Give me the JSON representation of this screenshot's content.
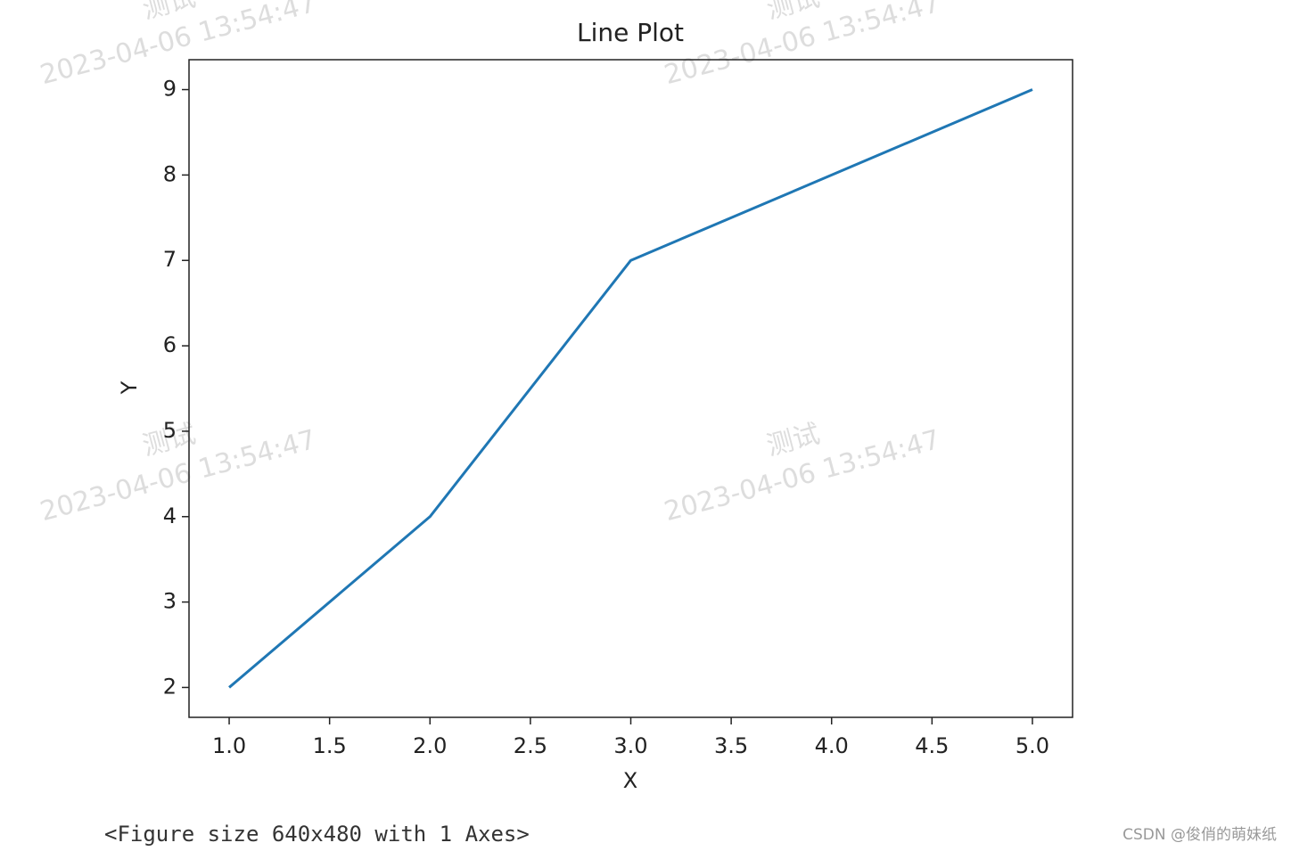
{
  "chart_data": {
    "type": "line",
    "title": "Line Plot",
    "xlabel": "X",
    "ylabel": "Y",
    "x": [
      1,
      2,
      3,
      4,
      5
    ],
    "values": [
      2,
      4,
      7,
      8,
      9
    ],
    "color": "#1f77b4",
    "xlim": [
      0.8,
      5.2
    ],
    "xticks": [
      {
        "value": 1,
        "label": "1.0"
      },
      1.5,
      {
        "value": 2,
        "label": "2.0"
      },
      2.5,
      {
        "value": 3,
        "label": "3.0"
      },
      3.5,
      {
        "value": 4,
        "label": "4.0"
      },
      4.5,
      {
        "value": 5,
        "label": "5.0"
      }
    ],
    "ylim": [
      1.65,
      9.35
    ],
    "yticks": [
      2,
      3,
      4,
      5,
      6,
      7,
      8,
      9
    ],
    "grid": false
  },
  "output_text": "<Figure size 640x480 with 1 Axes>",
  "watermark": {
    "text": "测试",
    "timestamp": "2023-04-06 13:54:47"
  },
  "footer": "CSDN @俊俏的萌妹纸"
}
